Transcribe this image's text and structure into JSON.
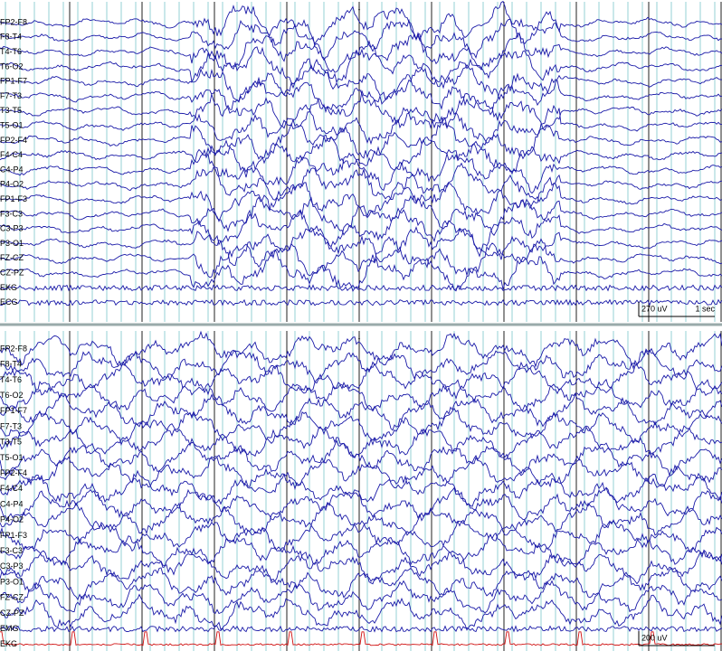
{
  "panels": [
    {
      "channels": [
        "FP2-F8",
        "F8-T4",
        "T4-T6",
        "T6-O2",
        "FP1-F7",
        "F7-T3",
        "T3-T5",
        "T5-O1",
        "FP2-F4",
        "F4-C4",
        "C4-P4",
        "P4-O2",
        "FP1-F3",
        "F3-C3",
        "C3-P3",
        "P3-O1",
        "FZ-CZ",
        "CZ-PZ",
        "EKG",
        "ECG"
      ],
      "scale": {
        "amplitude": "270 uV",
        "time": "1 sec"
      }
    },
    {
      "channels": [
        "FP2-F8",
        "F8-T4",
        "T4-T6",
        "T6-O2",
        "FP1-F7",
        "F7-T3",
        "T3-T5",
        "T5-O1",
        "FP2-F4",
        "F4-C4",
        "C4-P4",
        "P4-O2",
        "FP1-F3",
        "F3-C3",
        "C3-P3",
        "P3-O1",
        "FZ-CZ",
        "CZ-PZ",
        "EMG",
        "EKG"
      ],
      "scale": {
        "amplitude": "200 uV"
      }
    }
  ]
}
